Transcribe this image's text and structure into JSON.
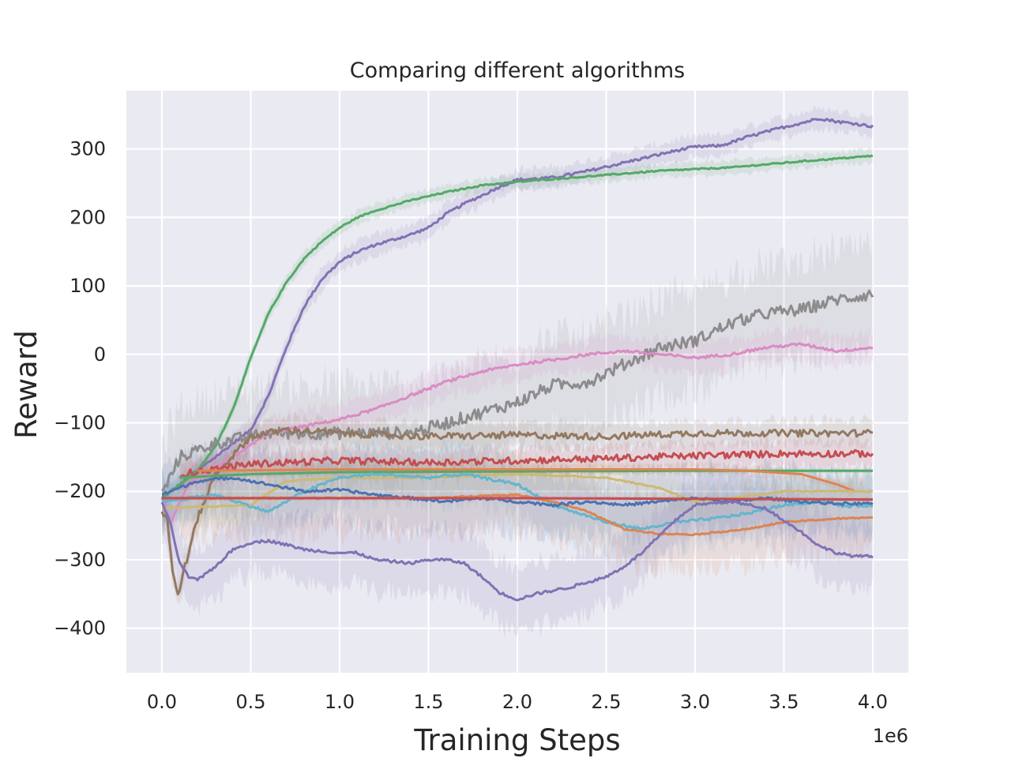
{
  "chart_data": {
    "type": "line",
    "title": "Comparing different algorithms",
    "xlabel": "Training Steps",
    "ylabel": "Reward",
    "x_offset_label": "1e6",
    "xlim": [
      -0.2,
      4.2
    ],
    "ylim": [
      -465,
      385
    ],
    "xticks": [
      0.0,
      0.5,
      1.0,
      1.5,
      2.0,
      2.5,
      3.0,
      3.5,
      4.0
    ],
    "xtick_labels": [
      "0.0",
      "0.5",
      "1.0",
      "1.5",
      "2.0",
      "2.5",
      "3.0",
      "3.5",
      "4.0"
    ],
    "yticks": [
      -400,
      -300,
      -200,
      -100,
      0,
      100,
      200,
      300
    ],
    "ytick_labels": [
      "−400",
      "−300",
      "−200",
      "−100",
      "0",
      "100",
      "200",
      "300"
    ],
    "grid": true,
    "background_color": "#eaeaf2",
    "grid_color": "#ffffff",
    "legend": "none",
    "series": [
      {
        "color": "#8172b3",
        "band": 15,
        "noise": 2,
        "points": [
          [
            0,
            -210
          ],
          [
            0.25,
            -160
          ],
          [
            0.4,
            -130
          ],
          [
            0.5,
            -110
          ],
          [
            0.6,
            -60
          ],
          [
            0.7,
            10
          ],
          [
            0.8,
            70
          ],
          [
            0.9,
            110
          ],
          [
            1.0,
            135
          ],
          [
            1.1,
            150
          ],
          [
            1.2,
            160
          ],
          [
            1.4,
            175
          ],
          [
            1.5,
            185
          ],
          [
            1.6,
            205
          ],
          [
            1.7,
            220
          ],
          [
            1.8,
            232
          ],
          [
            1.9,
            245
          ],
          [
            2.0,
            255
          ],
          [
            2.2,
            258
          ],
          [
            2.4,
            268
          ],
          [
            2.6,
            280
          ],
          [
            2.8,
            292
          ],
          [
            2.9,
            298
          ],
          [
            3.0,
            303
          ],
          [
            3.15,
            305
          ],
          [
            3.3,
            318
          ],
          [
            3.5,
            332
          ],
          [
            3.6,
            338
          ],
          [
            3.7,
            345
          ],
          [
            3.8,
            340
          ],
          [
            3.9,
            337
          ],
          [
            4.0,
            333
          ]
        ]
      },
      {
        "color": "#55a868",
        "band": 10,
        "noise": 1,
        "points": [
          [
            0,
            -210
          ],
          [
            0.1,
            -190
          ],
          [
            0.2,
            -170
          ],
          [
            0.3,
            -135
          ],
          [
            0.4,
            -80
          ],
          [
            0.5,
            -5
          ],
          [
            0.6,
            60
          ],
          [
            0.7,
            105
          ],
          [
            0.8,
            140
          ],
          [
            0.9,
            165
          ],
          [
            1.0,
            185
          ],
          [
            1.1,
            200
          ],
          [
            1.2,
            210
          ],
          [
            1.4,
            225
          ],
          [
            1.6,
            237
          ],
          [
            1.8,
            247
          ],
          [
            2.0,
            252
          ],
          [
            2.4,
            260
          ],
          [
            2.8,
            268
          ],
          [
            3.2,
            273
          ],
          [
            3.6,
            282
          ],
          [
            4.0,
            290
          ]
        ]
      },
      {
        "color": "#8c8c8c",
        "band": 70,
        "noise": 9,
        "points": [
          [
            0,
            -205
          ],
          [
            0.1,
            -150
          ],
          [
            0.3,
            -130
          ],
          [
            0.6,
            -115
          ],
          [
            1.0,
            -115
          ],
          [
            1.4,
            -115
          ],
          [
            1.6,
            -100
          ],
          [
            1.8,
            -85
          ],
          [
            2.0,
            -70
          ],
          [
            2.2,
            -45
          ],
          [
            2.4,
            -40
          ],
          [
            2.6,
            -15
          ],
          [
            2.8,
            10
          ],
          [
            3.0,
            20
          ],
          [
            3.2,
            45
          ],
          [
            3.4,
            60
          ],
          [
            3.6,
            65
          ],
          [
            3.8,
            80
          ],
          [
            4.0,
            88
          ]
        ]
      },
      {
        "color": "#da8bc3",
        "band": 22,
        "noise": 2,
        "points": [
          [
            0,
            -210
          ],
          [
            0.05,
            -245
          ],
          [
            0.15,
            -190
          ],
          [
            0.4,
            -150
          ],
          [
            0.6,
            -115
          ],
          [
            0.8,
            -105
          ],
          [
            1.0,
            -95
          ],
          [
            1.2,
            -80
          ],
          [
            1.4,
            -60
          ],
          [
            1.6,
            -40
          ],
          [
            1.8,
            -25
          ],
          [
            2.0,
            -15
          ],
          [
            2.2,
            -8
          ],
          [
            2.4,
            0
          ],
          [
            2.6,
            5
          ],
          [
            2.8,
            0
          ],
          [
            3.0,
            -5
          ],
          [
            3.2,
            0
          ],
          [
            3.4,
            10
          ],
          [
            3.6,
            15
          ],
          [
            3.8,
            5
          ],
          [
            4.0,
            10
          ]
        ]
      },
      {
        "color": "#937860",
        "band": 18,
        "noise": 5,
        "points": [
          [
            0,
            -230
          ],
          [
            0.03,
            -240
          ],
          [
            0.06,
            -320
          ],
          [
            0.09,
            -350
          ],
          [
            0.13,
            -310
          ],
          [
            0.2,
            -240
          ],
          [
            0.3,
            -175
          ],
          [
            0.5,
            -120
          ],
          [
            0.7,
            -110
          ],
          [
            1.0,
            -115
          ],
          [
            1.5,
            -120
          ],
          [
            2.0,
            -118
          ],
          [
            2.5,
            -120
          ],
          [
            3.0,
            -115
          ],
          [
            3.5,
            -115
          ],
          [
            4.0,
            -115
          ]
        ]
      },
      {
        "color": "#c44e52",
        "band": 18,
        "noise": 5,
        "points": [
          [
            0.1,
            -175
          ],
          [
            0.5,
            -160
          ],
          [
            1.0,
            -155
          ],
          [
            1.5,
            -158
          ],
          [
            2.0,
            -155
          ],
          [
            2.5,
            -152
          ],
          [
            3.0,
            -148
          ],
          [
            3.5,
            -145
          ],
          [
            4.0,
            -145
          ]
        ]
      },
      {
        "color": "#55a868",
        "band": 4,
        "noise": 0,
        "points": [
          [
            0.1,
            -180
          ],
          [
            0.5,
            -175
          ],
          [
            1.0,
            -172
          ],
          [
            2.0,
            -171
          ],
          [
            3.0,
            -170
          ],
          [
            4.0,
            -170
          ]
        ]
      },
      {
        "color": "#dd8452",
        "band": 8,
        "noise": 0,
        "points": [
          [
            0.2,
            -170
          ],
          [
            1.0,
            -168
          ],
          [
            2.0,
            -168
          ],
          [
            3.0,
            -168
          ],
          [
            3.3,
            -170
          ],
          [
            3.6,
            -175
          ],
          [
            3.8,
            -190
          ],
          [
            3.9,
            -200
          ]
        ]
      },
      {
        "color": "#ccb974",
        "band": 25,
        "noise": 1,
        "points": [
          [
            0,
            -225
          ],
          [
            0.3,
            -222
          ],
          [
            0.5,
            -220
          ],
          [
            0.7,
            -185
          ],
          [
            1.0,
            -180
          ],
          [
            1.5,
            -180
          ],
          [
            2.0,
            -175
          ],
          [
            2.5,
            -180
          ],
          [
            2.8,
            -195
          ],
          [
            3.0,
            -215
          ],
          [
            3.2,
            -210
          ],
          [
            3.5,
            -200
          ],
          [
            3.8,
            -200
          ],
          [
            4.0,
            -200
          ]
        ]
      },
      {
        "color": "#64b5cd",
        "band": 40,
        "noise": 2,
        "points": [
          [
            0,
            -215
          ],
          [
            0.3,
            -205
          ],
          [
            0.6,
            -230
          ],
          [
            0.8,
            -200
          ],
          [
            1.0,
            -180
          ],
          [
            1.2,
            -175
          ],
          [
            1.5,
            -180
          ],
          [
            1.7,
            -175
          ],
          [
            1.9,
            -185
          ],
          [
            2.0,
            -190
          ],
          [
            2.2,
            -220
          ],
          [
            2.5,
            -245
          ],
          [
            2.7,
            -255
          ],
          [
            2.9,
            -245
          ],
          [
            3.1,
            -240
          ],
          [
            3.3,
            -232
          ],
          [
            3.5,
            -220
          ],
          [
            3.7,
            -215
          ],
          [
            3.85,
            -222
          ],
          [
            4.0,
            -220
          ]
        ]
      },
      {
        "color": "#dd8452",
        "band": 50,
        "noise": 1,
        "points": [
          [
            0.1,
            -210
          ],
          [
            1.0,
            -210
          ],
          [
            1.5,
            -210
          ],
          [
            2.0,
            -205
          ],
          [
            2.2,
            -215
          ],
          [
            2.4,
            -230
          ],
          [
            2.6,
            -255
          ],
          [
            2.8,
            -262
          ],
          [
            3.0,
            -263
          ],
          [
            3.3,
            -255
          ],
          [
            3.5,
            -245
          ],
          [
            3.8,
            -240
          ],
          [
            4.0,
            -238
          ]
        ]
      },
      {
        "color": "#4c72b0",
        "band": 45,
        "noise": 2,
        "points": [
          [
            0,
            -205
          ],
          [
            0.2,
            -185
          ],
          [
            0.4,
            -180
          ],
          [
            0.6,
            -190
          ],
          [
            0.8,
            -200
          ],
          [
            1.0,
            -198
          ],
          [
            1.2,
            -205
          ],
          [
            1.4,
            -210
          ],
          [
            1.6,
            -215
          ],
          [
            1.8,
            -210
          ],
          [
            2.0,
            -215
          ],
          [
            2.2,
            -220
          ],
          [
            2.4,
            -215
          ],
          [
            2.6,
            -220
          ],
          [
            2.8,
            -215
          ],
          [
            3.0,
            -210
          ],
          [
            3.2,
            -215
          ],
          [
            3.4,
            -210
          ],
          [
            3.6,
            -215
          ],
          [
            3.8,
            -218
          ],
          [
            4.0,
            -218
          ]
        ]
      },
      {
        "color": "#8172b3",
        "band": 45,
        "noise": 2,
        "points": [
          [
            0,
            -215
          ],
          [
            0.05,
            -250
          ],
          [
            0.1,
            -305
          ],
          [
            0.15,
            -325
          ],
          [
            0.2,
            -330
          ],
          [
            0.3,
            -310
          ],
          [
            0.4,
            -285
          ],
          [
            0.5,
            -275
          ],
          [
            0.6,
            -272
          ],
          [
            0.7,
            -278
          ],
          [
            0.8,
            -285
          ],
          [
            1.0,
            -290
          ],
          [
            1.1,
            -290
          ],
          [
            1.2,
            -300
          ],
          [
            1.4,
            -305
          ],
          [
            1.5,
            -300
          ],
          [
            1.6,
            -300
          ],
          [
            1.7,
            -305
          ],
          [
            1.8,
            -325
          ],
          [
            1.9,
            -348
          ],
          [
            2.0,
            -358
          ],
          [
            2.1,
            -350
          ],
          [
            2.3,
            -340
          ],
          [
            2.5,
            -325
          ],
          [
            2.6,
            -310
          ],
          [
            2.7,
            -290
          ],
          [
            2.8,
            -265
          ],
          [
            2.9,
            -240
          ],
          [
            3.0,
            -220
          ],
          [
            3.2,
            -215
          ],
          [
            3.4,
            -225
          ],
          [
            3.6,
            -260
          ],
          [
            3.7,
            -280
          ],
          [
            3.8,
            -290
          ],
          [
            3.9,
            -295
          ],
          [
            4.0,
            -295
          ]
        ]
      },
      {
        "color": "#c44e52",
        "band": 3,
        "noise": 0,
        "points": [
          [
            0,
            -210
          ],
          [
            1.0,
            -210
          ],
          [
            2.0,
            -210
          ],
          [
            3.0,
            -211
          ],
          [
            4.0,
            -212
          ]
        ]
      }
    ]
  }
}
